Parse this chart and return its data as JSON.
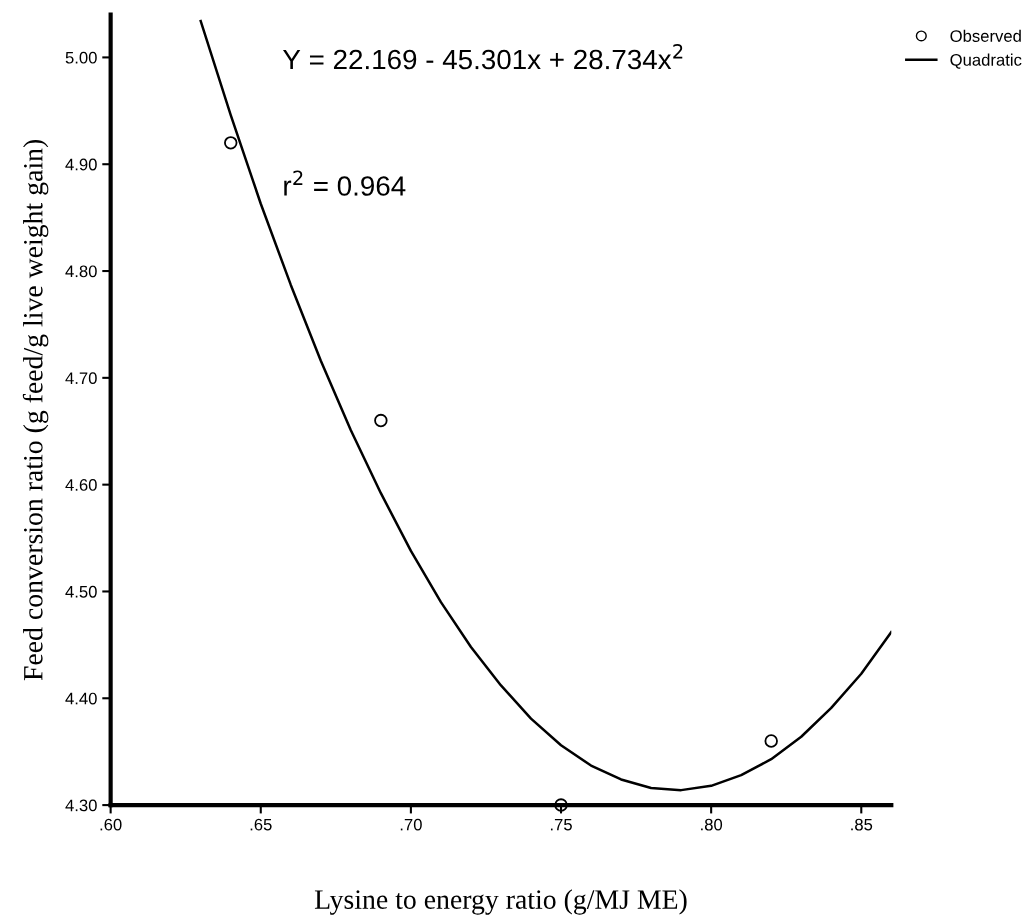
{
  "chart_data": {
    "type": "scatter",
    "xlabel": "Lysine to energy ratio (g/MJ ME)",
    "ylabel": "Feed conversion ratio (g feed/g live weight gain)",
    "annotations": [
      "Y = 22.169 - 45.301x + 28.734x$^{2}$",
      "r$^{2}$ = 0.964"
    ],
    "series": [
      {
        "name": "Observed",
        "marker": "circle",
        "color": "#000000",
        "x": [
          0.64,
          0.69,
          0.75,
          0.82
        ],
        "values": [
          4.92,
          4.66,
          4.3,
          4.36
        ]
      },
      {
        "name": "Quadratic",
        "type": "line",
        "marker": "none",
        "line_style": "solid",
        "color": "#000000",
        "x": [
          0.63,
          0.64,
          0.65,
          0.66,
          0.67,
          0.68,
          0.69,
          0.7,
          0.71,
          0.72,
          0.73,
          0.74,
          0.75,
          0.76,
          0.77,
          0.78,
          0.79,
          0.8,
          0.81,
          0.82,
          0.83,
          0.84,
          0.85,
          0.86
        ],
        "values": [
          5.034,
          4.946,
          4.863,
          4.787,
          4.716,
          4.651,
          4.592,
          4.538,
          4.49,
          4.448,
          4.412,
          4.381,
          4.356,
          4.337,
          4.324,
          4.316,
          4.314,
          4.318,
          4.328,
          4.343,
          4.364,
          4.391,
          4.423,
          4.462
        ]
      }
    ],
    "xlim": [
      0.6,
      0.86
    ],
    "xticks": [
      {
        "value": 0.6,
        "label": ".60"
      },
      {
        "value": 0.65,
        "label": ".65"
      },
      {
        "value": 0.7,
        "label": ".70"
      },
      {
        "value": 0.75,
        "label": ".75"
      },
      {
        "value": 0.8,
        "label": ".80"
      },
      {
        "value": 0.85,
        "label": ".85"
      }
    ],
    "ylim": [
      4.3,
      5.04
    ],
    "yticks": [
      {
        "value": 4.3,
        "label": "4.30"
      },
      {
        "value": 4.4,
        "label": "4.40"
      },
      {
        "value": 4.5,
        "label": "4.50"
      },
      {
        "value": 4.6,
        "label": "4.60"
      },
      {
        "value": 4.7,
        "label": "4.70"
      },
      {
        "value": 4.8,
        "label": "4.80"
      },
      {
        "value": 4.9,
        "label": "4.90"
      },
      {
        "value": 5.0,
        "label": "5.00"
      }
    ],
    "grid": false,
    "legend": "top right"
  }
}
